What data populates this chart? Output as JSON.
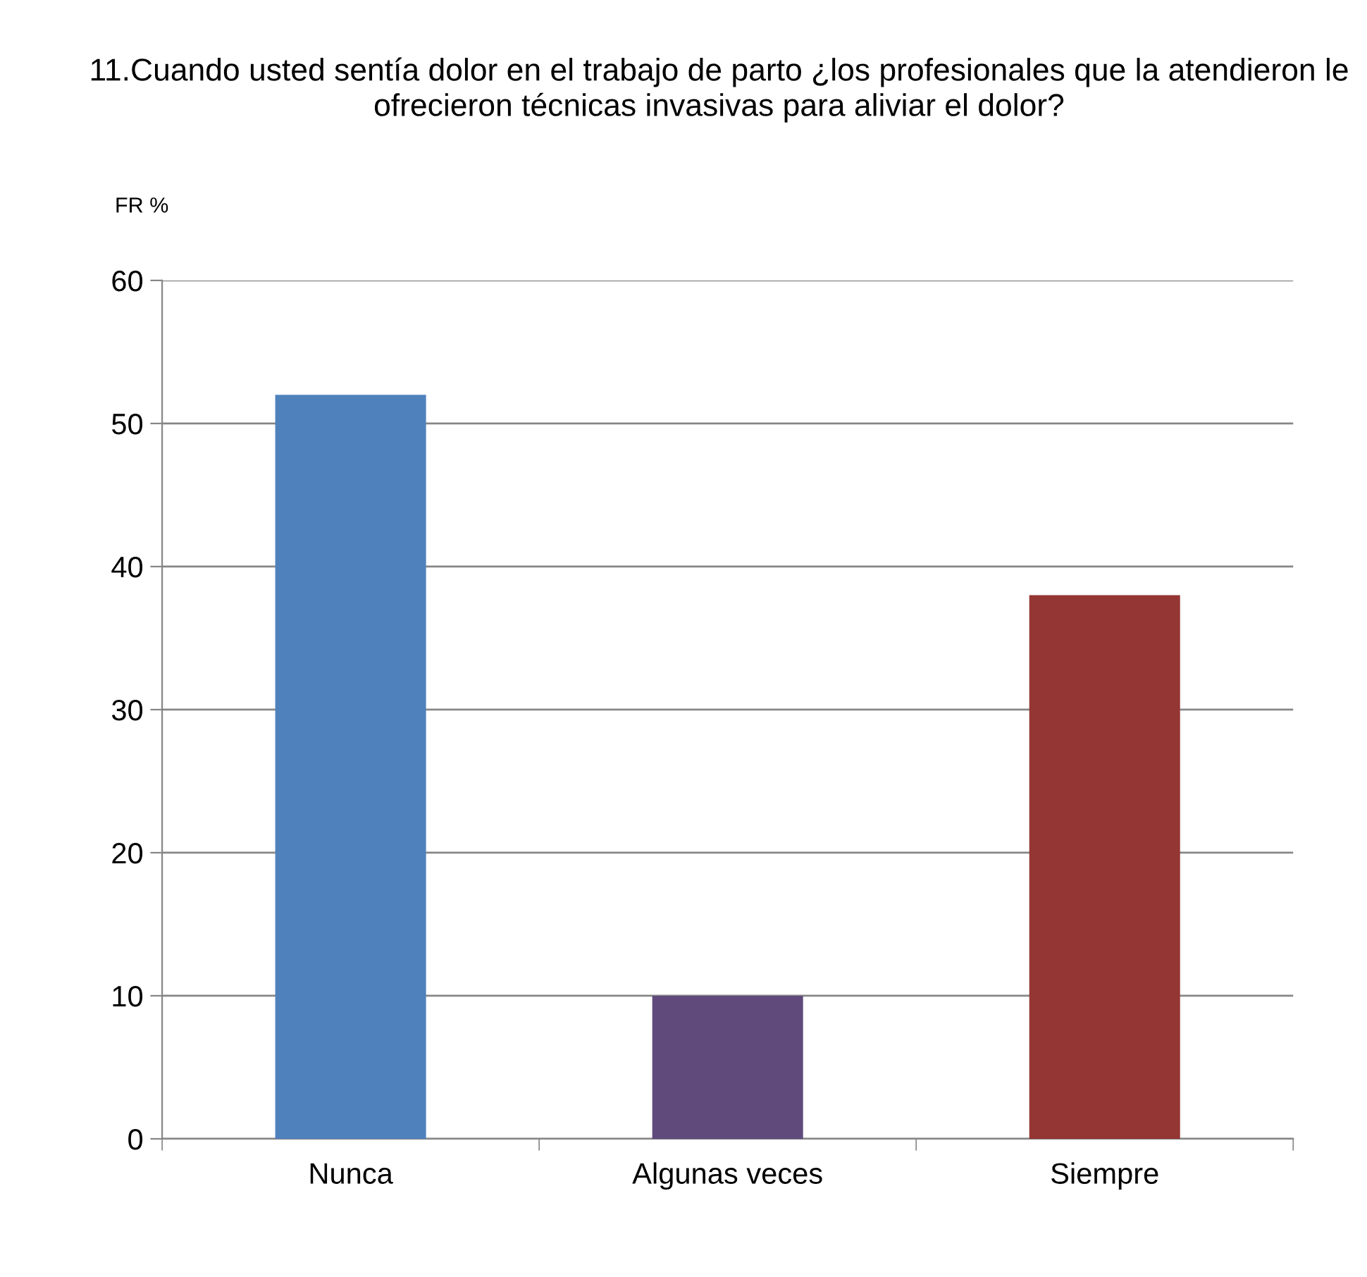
{
  "chart_data": {
    "type": "bar",
    "title": "11.Cuando usted sentía dolor en el trabajo de parto ¿los profesionales que la atendieron le ofrecieron técnicas invasivas para aliviar el dolor?",
    "ylabel": "FR %",
    "categories": [
      "Nunca",
      "Algunas veces",
      "Siempre"
    ],
    "values": [
      52,
      10,
      38
    ],
    "colors": [
      "#4f81bd",
      "#604a7b",
      "#943634"
    ],
    "ylim": [
      0,
      60
    ],
    "yticks": [
      0,
      10,
      20,
      30,
      40,
      50,
      60
    ],
    "grid": "y",
    "legend": false
  }
}
